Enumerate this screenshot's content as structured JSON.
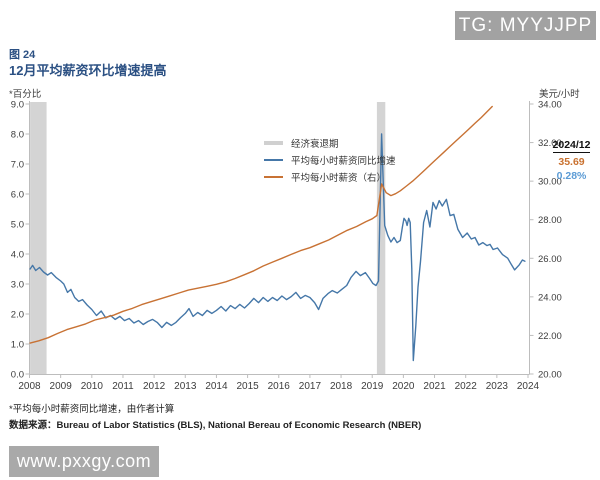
{
  "page": {
    "watermark_top": "TG: MYYJJPP",
    "watermark_bottom": "www.pxxgy.com"
  },
  "header": {
    "figure_label": "图 24",
    "title": "12月平均薪资环比增速提高"
  },
  "footnotes": {
    "note1": "*平均每小时薪资同比增速，由作者计算",
    "note2": "数据来源：Bureau of Labor Statistics (BLS), National Bereau of Economic Research (NBER)"
  },
  "chart_data": {
    "type": "line",
    "title": "12月平均薪资环比增速提高",
    "grid": false,
    "band_color": "#d4d4d4",
    "axis_color": "#bdbdbd",
    "tick_text_color": "#3d3d3d",
    "left_axis": {
      "label": "*百分比",
      "min": 0,
      "max": 9,
      "tick_step": 1,
      "tick_labels": [
        "9.0",
        "8.0",
        "7.0",
        "6.0",
        "5.0",
        "4.0",
        "3.0",
        "2.0",
        "1.0",
        "0.0"
      ]
    },
    "right_axis": {
      "label": "美元/小时",
      "min": 20,
      "max": 34,
      "tick_step": 2,
      "tick_labels": [
        "34.00",
        "32.00",
        "30.00",
        "28.00",
        "26.00",
        "24.00",
        "22.00",
        "20.00"
      ]
    },
    "x_axis": {
      "min": 2008,
      "max": 2024,
      "tick_labels": [
        "2008",
        "2009",
        "2010",
        "2011",
        "2012",
        "2013",
        "2014",
        "2015",
        "2016",
        "2017",
        "2018",
        "2019",
        "2020",
        "2021",
        "2022",
        "2023",
        "2024"
      ]
    },
    "recession_bands": [
      [
        2008.02,
        2008.55
      ],
      [
        2019.15,
        2019.42
      ]
    ],
    "legend": [
      {
        "label": "经济衰退期",
        "color": "#d0d0d0",
        "type": "band"
      },
      {
        "label": "平均每小时薪资同比增速",
        "color": "#4577a8",
        "type": "line"
      },
      {
        "label": "平均每小时薪资（右）",
        "color": "#c87234",
        "type": "line"
      }
    ],
    "annotation": {
      "date": "2024/12",
      "wage": "35.69",
      "growth": "0.28%",
      "wage_color": "#c9712f",
      "growth_color": "#5b9bd5"
    },
    "series": [
      {
        "name": "平均每小时薪资同比增速",
        "axis": "left",
        "color": "#4577a8",
        "points": [
          [
            2008.02,
            3.5
          ],
          [
            2008.1,
            3.62
          ],
          [
            2008.2,
            3.45
          ],
          [
            2008.32,
            3.55
          ],
          [
            2008.45,
            3.4
          ],
          [
            2008.58,
            3.3
          ],
          [
            2008.7,
            3.38
          ],
          [
            2008.85,
            3.22
          ],
          [
            2009.0,
            3.1
          ],
          [
            2009.1,
            3.0
          ],
          [
            2009.22,
            2.72
          ],
          [
            2009.33,
            2.82
          ],
          [
            2009.45,
            2.55
          ],
          [
            2009.58,
            2.42
          ],
          [
            2009.7,
            2.48
          ],
          [
            2009.85,
            2.3
          ],
          [
            2010.0,
            2.15
          ],
          [
            2010.15,
            1.95
          ],
          [
            2010.3,
            2.1
          ],
          [
            2010.45,
            1.87
          ],
          [
            2010.6,
            1.95
          ],
          [
            2010.75,
            1.82
          ],
          [
            2010.9,
            1.92
          ],
          [
            2011.05,
            1.78
          ],
          [
            2011.2,
            1.85
          ],
          [
            2011.35,
            1.7
          ],
          [
            2011.5,
            1.78
          ],
          [
            2011.65,
            1.65
          ],
          [
            2011.8,
            1.75
          ],
          [
            2011.95,
            1.82
          ],
          [
            2012.1,
            1.72
          ],
          [
            2012.25,
            1.55
          ],
          [
            2012.4,
            1.72
          ],
          [
            2012.55,
            1.62
          ],
          [
            2012.7,
            1.72
          ],
          [
            2012.85,
            1.88
          ],
          [
            2013.0,
            2.02
          ],
          [
            2013.12,
            2.18
          ],
          [
            2013.25,
            1.92
          ],
          [
            2013.4,
            2.05
          ],
          [
            2013.55,
            1.95
          ],
          [
            2013.7,
            2.12
          ],
          [
            2013.85,
            2.02
          ],
          [
            2014.0,
            2.12
          ],
          [
            2014.15,
            2.25
          ],
          [
            2014.3,
            2.1
          ],
          [
            2014.45,
            2.28
          ],
          [
            2014.6,
            2.18
          ],
          [
            2014.75,
            2.32
          ],
          [
            2014.9,
            2.2
          ],
          [
            2015.05,
            2.35
          ],
          [
            2015.2,
            2.52
          ],
          [
            2015.35,
            2.38
          ],
          [
            2015.5,
            2.55
          ],
          [
            2015.65,
            2.42
          ],
          [
            2015.8,
            2.55
          ],
          [
            2015.95,
            2.45
          ],
          [
            2016.1,
            2.6
          ],
          [
            2016.25,
            2.48
          ],
          [
            2016.4,
            2.58
          ],
          [
            2016.55,
            2.72
          ],
          [
            2016.7,
            2.52
          ],
          [
            2016.85,
            2.62
          ],
          [
            2017.0,
            2.55
          ],
          [
            2017.15,
            2.38
          ],
          [
            2017.28,
            2.15
          ],
          [
            2017.42,
            2.52
          ],
          [
            2017.58,
            2.68
          ],
          [
            2017.72,
            2.78
          ],
          [
            2017.88,
            2.7
          ],
          [
            2018.02,
            2.82
          ],
          [
            2018.18,
            2.95
          ],
          [
            2018.32,
            3.22
          ],
          [
            2018.48,
            3.42
          ],
          [
            2018.62,
            3.28
          ],
          [
            2018.78,
            3.38
          ],
          [
            2018.92,
            3.18
          ],
          [
            2019.02,
            3.02
          ],
          [
            2019.12,
            2.95
          ],
          [
            2019.2,
            3.1
          ],
          [
            2019.3,
            8.0
          ],
          [
            2019.4,
            4.95
          ],
          [
            2019.5,
            4.62
          ],
          [
            2019.6,
            4.4
          ],
          [
            2019.7,
            4.55
          ],
          [
            2019.8,
            4.38
          ],
          [
            2019.9,
            4.45
          ],
          [
            2019.97,
            4.9
          ],
          [
            2020.02,
            5.19
          ],
          [
            2020.08,
            5.1
          ],
          [
            2020.12,
            4.95
          ],
          [
            2020.17,
            5.19
          ],
          [
            2020.22,
            5.05
          ],
          [
            2020.27,
            3.5
          ],
          [
            2020.32,
            0.45
          ],
          [
            2020.4,
            1.6
          ],
          [
            2020.47,
            2.9
          ],
          [
            2020.55,
            3.75
          ],
          [
            2020.65,
            5.05
          ],
          [
            2020.75,
            5.45
          ],
          [
            2020.85,
            4.9
          ],
          [
            2020.95,
            5.72
          ],
          [
            2021.05,
            5.5
          ],
          [
            2021.15,
            5.78
          ],
          [
            2021.25,
            5.6
          ],
          [
            2021.38,
            5.82
          ],
          [
            2021.5,
            5.28
          ],
          [
            2021.62,
            5.32
          ],
          [
            2021.75,
            4.82
          ],
          [
            2021.9,
            4.55
          ],
          [
            2022.05,
            4.7
          ],
          [
            2022.18,
            4.5
          ],
          [
            2022.3,
            4.55
          ],
          [
            2022.42,
            4.3
          ],
          [
            2022.55,
            4.38
          ],
          [
            2022.68,
            4.28
          ],
          [
            2022.78,
            4.32
          ],
          [
            2022.88,
            4.15
          ],
          [
            2023.02,
            4.2
          ],
          [
            2023.18,
            3.98
          ],
          [
            2023.35,
            3.86
          ],
          [
            2023.47,
            3.64
          ],
          [
            2023.57,
            3.47
          ],
          [
            2023.72,
            3.64
          ],
          [
            2023.82,
            3.8
          ],
          [
            2023.9,
            3.76
          ]
        ]
      },
      {
        "name": "平均每小时薪资（右）",
        "axis": "right",
        "color": "#c87234",
        "points": [
          [
            2008.02,
            21.6
          ],
          [
            2008.3,
            21.72
          ],
          [
            2008.6,
            21.88
          ],
          [
            2008.9,
            22.1
          ],
          [
            2009.2,
            22.3
          ],
          [
            2009.5,
            22.45
          ],
          [
            2009.8,
            22.6
          ],
          [
            2010.1,
            22.8
          ],
          [
            2010.4,
            22.92
          ],
          [
            2010.7,
            23.05
          ],
          [
            2011.0,
            23.25
          ],
          [
            2011.3,
            23.4
          ],
          [
            2011.6,
            23.6
          ],
          [
            2011.9,
            23.75
          ],
          [
            2012.2,
            23.9
          ],
          [
            2012.5,
            24.05
          ],
          [
            2012.8,
            24.2
          ],
          [
            2013.1,
            24.35
          ],
          [
            2013.4,
            24.45
          ],
          [
            2013.7,
            24.55
          ],
          [
            2014.0,
            24.65
          ],
          [
            2014.3,
            24.78
          ],
          [
            2014.6,
            24.95
          ],
          [
            2014.9,
            25.15
          ],
          [
            2015.2,
            25.35
          ],
          [
            2015.5,
            25.6
          ],
          [
            2015.8,
            25.8
          ],
          [
            2016.1,
            26.0
          ],
          [
            2016.4,
            26.2
          ],
          [
            2016.7,
            26.4
          ],
          [
            2017.0,
            26.55
          ],
          [
            2017.3,
            26.75
          ],
          [
            2017.6,
            26.95
          ],
          [
            2017.9,
            27.2
          ],
          [
            2018.2,
            27.45
          ],
          [
            2018.5,
            27.65
          ],
          [
            2018.8,
            27.9
          ],
          [
            2019.0,
            28.05
          ],
          [
            2019.15,
            28.22
          ],
          [
            2019.3,
            29.85
          ],
          [
            2019.45,
            29.4
          ],
          [
            2019.6,
            29.25
          ],
          [
            2019.75,
            29.35
          ],
          [
            2019.9,
            29.5
          ],
          [
            2020.1,
            29.75
          ],
          [
            2020.3,
            30.0
          ],
          [
            2020.5,
            30.3
          ],
          [
            2020.7,
            30.6
          ],
          [
            2020.9,
            30.9
          ],
          [
            2021.1,
            31.2
          ],
          [
            2021.3,
            31.5
          ],
          [
            2021.5,
            31.8
          ],
          [
            2021.7,
            32.1
          ],
          [
            2021.9,
            32.4
          ],
          [
            2022.1,
            32.7
          ],
          [
            2022.3,
            33.0
          ],
          [
            2022.5,
            33.3
          ],
          [
            2022.7,
            33.62
          ],
          [
            2022.85,
            33.87
          ]
        ]
      }
    ]
  }
}
